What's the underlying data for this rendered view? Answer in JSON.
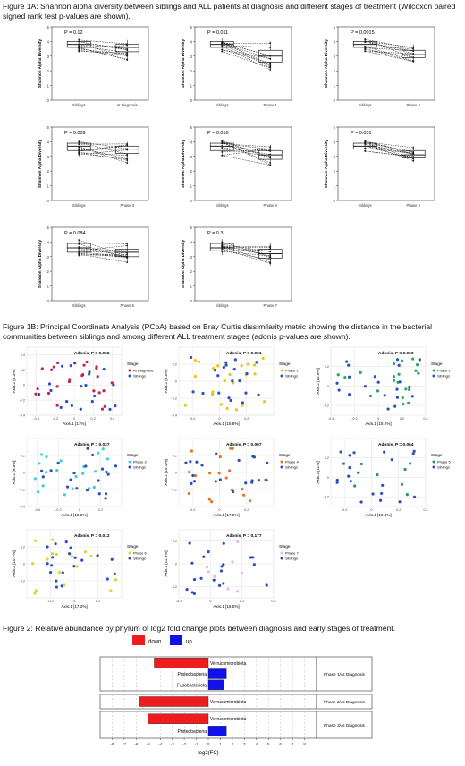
{
  "captions": {
    "fig1a": "Figure 1A: Shannon alpha diversity between siblings and ALL patients at diagnosis and different stages of treatment (Wilcoxon paired signed rank test p-values are shown).",
    "fig1b": "Figure 1B: Principal Coordinate Analysis (PCoA) based on Bray Curtis dissimilarity metric showing the distance in the bacterial communities between siblings and among different ALL treatment stages (adonis p-values are shown).",
    "fig2": "Figure 2: Relative abundance by phylum of log2 fold change plots between diagnosis and early stages of treatment."
  },
  "colors": {
    "siblings": "#2b4fbf",
    "down": "#ee1c1c",
    "up": "#1111ee",
    "grid": "#e2e2e2"
  },
  "chart_data": [
    {
      "type": "box",
      "ylabel": "Shannon Alpha Diversity",
      "p": "P = 0.12",
      "categories": [
        "Siblings",
        "At Diagnosis"
      ],
      "ylim": [
        0,
        5
      ],
      "yticks": [
        0,
        1,
        2,
        3,
        4,
        5
      ],
      "box": [
        [
          3.3,
          3.6,
          3.8,
          4.0,
          4.2
        ],
        [
          2.7,
          3.3,
          3.6,
          3.8,
          4.1
        ]
      ]
    },
    {
      "type": "box",
      "ylabel": "Shannon Alpha Diversity",
      "p": "P = 0.011",
      "categories": [
        "Siblings",
        "Phase 1"
      ],
      "ylim": [
        0,
        5
      ],
      "yticks": [
        0,
        1,
        2,
        3,
        4,
        5
      ],
      "box": [
        [
          3.3,
          3.6,
          3.8,
          4.0,
          4.2
        ],
        [
          2.0,
          2.6,
          3.0,
          3.4,
          4.0
        ]
      ]
    },
    {
      "type": "box",
      "ylabel": "Shannon Alpha Diversity",
      "p": "P = 0.0015",
      "categories": [
        "Siblings",
        "Phase 2"
      ],
      "ylim": [
        0,
        5
      ],
      "yticks": [
        0,
        1,
        2,
        3,
        4,
        5
      ],
      "box": [
        [
          3.3,
          3.6,
          3.8,
          4.0,
          4.2
        ],
        [
          2.6,
          2.9,
          3.1,
          3.4,
          3.8
        ]
      ]
    },
    {
      "type": "box",
      "ylabel": "Shannon Alpha Diversity",
      "p": "P = 0.039",
      "categories": [
        "Siblings",
        "Phase 3"
      ],
      "ylim": [
        0,
        5
      ],
      "yticks": [
        0,
        1,
        2,
        3,
        4,
        5
      ],
      "box": [
        [
          3.0,
          3.4,
          3.7,
          3.9,
          4.1
        ],
        [
          2.5,
          3.2,
          3.5,
          3.7,
          4.0
        ]
      ]
    },
    {
      "type": "box",
      "ylabel": "Shannon Alpha Diversity",
      "p": "P = 0.016",
      "categories": [
        "Siblings",
        "Phase 4"
      ],
      "ylim": [
        0,
        5
      ],
      "yticks": [
        0,
        1,
        2,
        3,
        4,
        5
      ],
      "box": [
        [
          3.0,
          3.4,
          3.7,
          3.9,
          4.1
        ],
        [
          2.4,
          2.8,
          3.1,
          3.4,
          3.8
        ]
      ]
    },
    {
      "type": "box",
      "ylabel": "Shannon Alpha Diversity",
      "p": "P = 0.031",
      "categories": [
        "Siblings",
        "Phase 5"
      ],
      "ylim": [
        0,
        5
      ],
      "yticks": [
        0,
        1,
        2,
        3,
        4,
        5
      ],
      "box": [
        [
          3.3,
          3.5,
          3.7,
          3.9,
          4.1
        ],
        [
          2.6,
          2.9,
          3.1,
          3.4,
          3.7
        ]
      ]
    },
    {
      "type": "box",
      "ylabel": "Shannon Alpha Diversity",
      "p": "P = 0.084",
      "categories": [
        "Siblings",
        "Phase 6"
      ],
      "ylim": [
        0,
        5
      ],
      "yticks": [
        0,
        1,
        2,
        3,
        4,
        5
      ],
      "box": [
        [
          3.0,
          3.3,
          3.6,
          3.9,
          4.2
        ],
        [
          2.6,
          3.0,
          3.3,
          3.5,
          3.9
        ]
      ]
    },
    {
      "type": "box",
      "ylabel": "Shannon Alpha Diversity",
      "p": "P = 0.3",
      "categories": [
        "Siblings",
        "Phase 7"
      ],
      "ylim": [
        0,
        5
      ],
      "yticks": [
        0,
        1,
        2,
        3,
        4,
        5
      ],
      "box": [
        [
          3.1,
          3.4,
          3.6,
          3.9,
          4.2
        ],
        [
          2.4,
          2.9,
          3.2,
          3.5,
          3.9
        ]
      ]
    },
    {
      "type": "scatter",
      "title": "Adonis, P = 0.002",
      "xlabel": "Axis.1  [17%]",
      "ylabel": "Axis.2  [9.3%]",
      "legend_title": "Stage",
      "legend": [
        "At Diagnosis",
        "Siblings"
      ],
      "color": "#c8234a",
      "xlim": [
        -0.5,
        0.5
      ],
      "ylim": [
        -0.4,
        0.5
      ],
      "xticks": [
        -0.4,
        -0.2,
        0,
        0.2,
        0.4
      ],
      "yticks": [
        -0.4,
        -0.2,
        0,
        0.2,
        0.4
      ],
      "seed": 11,
      "n": [
        24,
        20
      ]
    },
    {
      "type": "scatter",
      "title": "Adonis, P = 0.001",
      "xlabel": "Axis.1  [15.8%]",
      "ylabel": "Axis.2  [9.8%]",
      "legend_title": "Stage",
      "legend": [
        "Phase 1",
        "Siblings"
      ],
      "color": "#e8c80a",
      "xlim": [
        -0.3,
        0.4
      ],
      "ylim": [
        -0.4,
        0.4
      ],
      "xticks": [
        -0.2,
        0,
        0.2
      ],
      "yticks": [
        -0.4,
        -0.2,
        0,
        0.2
      ],
      "seed": 23,
      "n": [
        22,
        20
      ]
    },
    {
      "type": "scatter",
      "title": "Adonis, P = 0.003",
      "xlabel": "Axis.1  [15.2%]",
      "ylabel": "Axis.2  [10.9%]",
      "legend_title": "Stage",
      "legend": [
        "Phase 2",
        "Siblings"
      ],
      "color": "#28a85c",
      "xlim": [
        -0.4,
        0.4
      ],
      "ylim": [
        -0.3,
        0.4
      ],
      "xticks": [
        -0.4,
        -0.2,
        0,
        0.2,
        0.4
      ],
      "yticks": [
        -0.2,
        0,
        0.2
      ],
      "seed": 37,
      "n": [
        20,
        20
      ]
    },
    {
      "type": "scatter",
      "title": "Adonis, P = 0.027",
      "xlabel": "Axis.1  [15.8%]",
      "ylabel": "Axis.2  [9.8%]",
      "legend_title": "Stage",
      "legend": [
        "Phase 3",
        "Siblings"
      ],
      "color": "#3ad0d8",
      "xlim": [
        -0.5,
        0.4
      ],
      "ylim": [
        -0.4,
        0.4
      ],
      "xticks": [
        -0.4,
        -0.2,
        0,
        0.2
      ],
      "yticks": [
        -0.4,
        -0.2,
        0,
        0.2
      ],
      "seed": 41,
      "n": [
        20,
        20
      ]
    },
    {
      "type": "scatter",
      "title": "Adonis, P = 0.007",
      "xlabel": "Axis.1  [17.5%]",
      "ylabel": "Axis.2  [10.1%]",
      "legend_title": "Stage",
      "legend": [
        "Phase 4",
        "Siblings"
      ],
      "color": "#e0742a",
      "xlim": [
        -0.3,
        0.4
      ],
      "ylim": [
        -0.4,
        0.4
      ],
      "xticks": [
        -0.2,
        0,
        0.2
      ],
      "yticks": [
        -0.2,
        0,
        0.2
      ],
      "seed": 53,
      "n": [
        18,
        20
      ]
    },
    {
      "type": "scatter",
      "title": "Adonis, P = 0.064",
      "xlabel": "Axis.1  [18.3%]",
      "ylabel": "Axis.2  [11%]",
      "legend_title": "Stage",
      "legend": [
        "Phase 5",
        "Siblings"
      ],
      "color": "#2a8a8a",
      "xlim": [
        -0.3,
        0.4
      ],
      "ylim": [
        -0.3,
        0.4
      ],
      "xticks": [
        -0.2,
        0,
        0.2,
        0.4
      ],
      "yticks": [
        -0.2,
        0,
        0.2
      ],
      "seed": 67,
      "n": [
        8,
        20
      ]
    },
    {
      "type": "scatter",
      "title": "Adonis, P = 0.012",
      "xlabel": "Axis.1  [17.2%]",
      "ylabel": "Axis.2  [10.7%]",
      "legend_title": "Stage",
      "legend": [
        "Phase 6",
        "Siblings"
      ],
      "color": "#d8d82a",
      "xlim": [
        -0.4,
        0.4
      ],
      "ylim": [
        -0.4,
        0.4
      ],
      "xticks": [
        -0.2,
        0,
        0.2
      ],
      "yticks": [
        -0.2,
        0,
        0.2
      ],
      "seed": 71,
      "n": [
        16,
        20
      ]
    },
    {
      "type": "scatter",
      "title": "Adonis, P = 0.177",
      "xlabel": "Axis.1  [16.5%]",
      "ylabel": "Axis.2  [11.6%]",
      "legend_title": "Stage",
      "legend": [
        "Phase 7",
        "Siblings"
      ],
      "color": "#e8b8e8",
      "xlim": [
        -0.2,
        0.4
      ],
      "ylim": [
        -0.3,
        0.3
      ],
      "xticks": [
        -0.2,
        0,
        0.2,
        0.4
      ],
      "yticks": [
        -0.2,
        0,
        0.2
      ],
      "seed": 83,
      "n": [
        8,
        20
      ]
    },
    {
      "type": "bar",
      "orientation": "horizontal",
      "legend": [
        "down",
        "up"
      ],
      "xlabel": "log2(FC)",
      "xlim": [
        -9,
        9
      ],
      "xticks": [
        -8,
        -7,
        -6,
        -5,
        -4,
        -3,
        -2,
        -1,
        0,
        1,
        2,
        3,
        4,
        5,
        6,
        7,
        8
      ],
      "facets": [
        {
          "label": "Phase 1/At Diagnosis",
          "bars": [
            {
              "name": "Verrucomicrobiota",
              "value": -4.5
            },
            {
              "name": "Proteobacteria",
              "value": 1.5
            },
            {
              "name": "Fusobacteriota",
              "value": 1.3
            }
          ]
        },
        {
          "label": "Phase 2/At Diagnosis",
          "bars": [
            {
              "name": "Verrucomicrobiota",
              "value": -5.7
            }
          ]
        },
        {
          "label": "Phase 3/At Diagnosis",
          "bars": [
            {
              "name": "Verrucomicrobiota",
              "value": -5.0
            },
            {
              "name": "Proteobacteria",
              "value": 1.5
            }
          ]
        }
      ]
    }
  ]
}
